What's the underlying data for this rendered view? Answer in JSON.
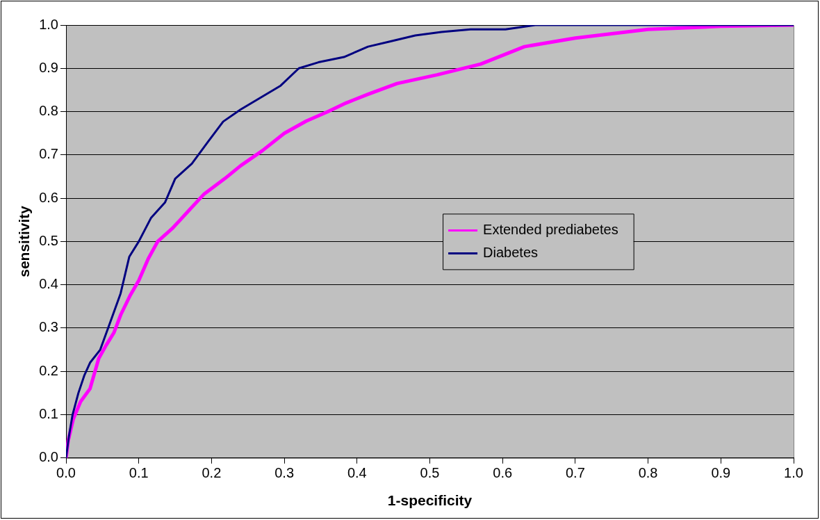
{
  "chart_data": {
    "type": "line",
    "xlabel": "1-specificity",
    "ylabel": "sensitivity",
    "xlim": [
      0,
      1
    ],
    "ylim": [
      0,
      1
    ],
    "xticks": [
      {
        "value": 0,
        "label": "0.0"
      },
      {
        "value": 0.1,
        "label": "0.1"
      },
      {
        "value": 0.2,
        "label": "0.2"
      },
      {
        "value": 0.3,
        "label": "0.3"
      },
      {
        "value": 0.4,
        "label": "0.4"
      },
      {
        "value": 0.5,
        "label": "0.5"
      },
      {
        "value": 0.6,
        "label": "0.6"
      },
      {
        "value": 0.7,
        "label": "0.7"
      },
      {
        "value": 0.8,
        "label": "0.8"
      },
      {
        "value": 0.9,
        "label": "0.9"
      },
      {
        "value": 1,
        "label": "1.0"
      }
    ],
    "yticks": [
      {
        "value": 0,
        "label": "0.0"
      },
      {
        "value": 0.1,
        "label": "0.1"
      },
      {
        "value": 0.2,
        "label": "0.2"
      },
      {
        "value": 0.3,
        "label": "0.3"
      },
      {
        "value": 0.4,
        "label": "0.4"
      },
      {
        "value": 0.5,
        "label": "0.5"
      },
      {
        "value": 0.6,
        "label": "0.6"
      },
      {
        "value": 0.7,
        "label": "0.7"
      },
      {
        "value": 0.8,
        "label": "0.8"
      },
      {
        "value": 0.9,
        "label": "0.9"
      },
      {
        "value": 1,
        "label": "1.0"
      }
    ],
    "grid": "y",
    "legend": "center right",
    "marker": "none",
    "line_style": "solid",
    "series": [
      {
        "name": "Extended prediabetes",
        "color": "#ff00ff",
        "x": [
          0,
          0.003,
          0.01,
          0.02,
          0.033,
          0.045,
          0.055,
          0.066,
          0.075,
          0.088,
          0.1,
          0.113,
          0.126,
          0.146,
          0.168,
          0.19,
          0.218,
          0.24,
          0.27,
          0.3,
          0.33,
          0.36,
          0.385,
          0.415,
          0.455,
          0.51,
          0.57,
          0.63,
          0.7,
          0.8,
          0.9,
          1
        ],
        "values": [
          0,
          0.04,
          0.09,
          0.13,
          0.16,
          0.23,
          0.26,
          0.29,
          0.33,
          0.375,
          0.41,
          0.46,
          0.5,
          0.53,
          0.57,
          0.61,
          0.645,
          0.675,
          0.71,
          0.75,
          0.778,
          0.8,
          0.82,
          0.84,
          0.865,
          0.885,
          0.91,
          0.95,
          0.97,
          0.99,
          0.997,
          1
        ]
      },
      {
        "name": "Diabetes",
        "color": "#000080",
        "x": [
          0,
          0.004,
          0.009,
          0.017,
          0.025,
          0.033,
          0.047,
          0.06,
          0.075,
          0.087,
          0.1,
          0.117,
          0.136,
          0.15,
          0.173,
          0.195,
          0.216,
          0.24,
          0.295,
          0.32,
          0.347,
          0.382,
          0.415,
          0.445,
          0.48,
          0.516,
          0.556,
          0.604,
          0.645,
          0.7,
          1
        ],
        "values": [
          0,
          0.05,
          0.1,
          0.15,
          0.19,
          0.22,
          0.25,
          0.31,
          0.38,
          0.465,
          0.5,
          0.555,
          0.59,
          0.645,
          0.68,
          0.73,
          0.777,
          0.805,
          0.86,
          0.9,
          0.914,
          0.926,
          0.95,
          0.962,
          0.976,
          0.984,
          0.99,
          0.99,
          1,
          1,
          1
        ]
      }
    ]
  }
}
